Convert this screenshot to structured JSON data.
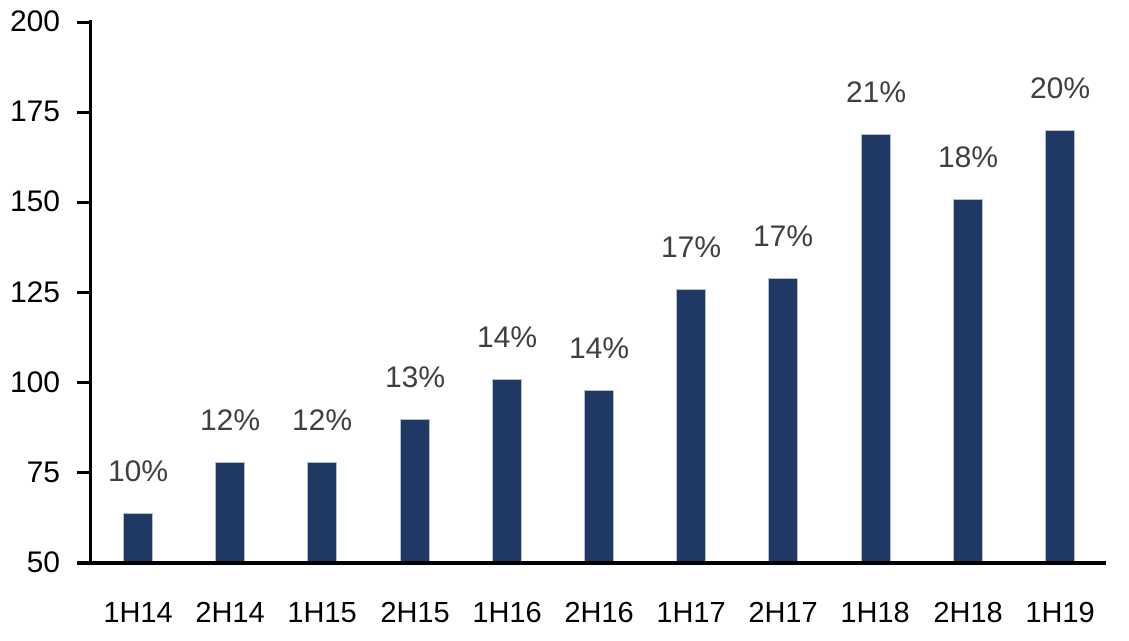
{
  "chart_data": {
    "type": "bar",
    "title": "",
    "xlabel": "",
    "ylabel": "",
    "categories": [
      "1H14",
      "2H14",
      "1H15",
      "2H15",
      "1H16",
      "2H16",
      "1H17",
      "2H17",
      "1H18",
      "2H18",
      "1H19"
    ],
    "values": [
      64,
      78,
      78,
      90,
      101,
      98,
      126,
      129,
      169,
      151,
      170
    ],
    "bar_labels": [
      "10%",
      "12%",
      "12%",
      "13%",
      "14%",
      "14%",
      "17%",
      "17%",
      "21%",
      "18%",
      "20%"
    ],
    "ylim": [
      50,
      200
    ],
    "yticks": [
      200,
      175,
      150,
      125,
      100,
      75,
      50
    ],
    "grid": false,
    "legend": false,
    "colors": {
      "bar_fill": "#203864",
      "bar_border": "#B6BFCC",
      "axis_line": "#000000",
      "axis_tick_label": "#000000",
      "data_label": "#3F3F3F",
      "background": "#FFFFFF"
    }
  }
}
